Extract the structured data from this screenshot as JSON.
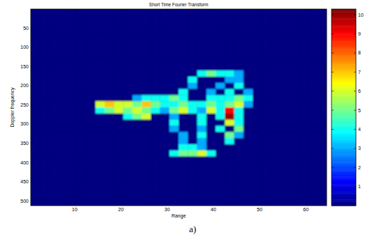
{
  "chart_data": {
    "type": "heatmap",
    "title": "Short Time Fourier Transform",
    "x_label": "Range",
    "y_label": "Doppler frequency",
    "caption": "a)",
    "x": [
      1.5,
      3.5,
      5.5,
      7.5,
      9.5,
      11.5,
      13.5,
      15.5,
      17.5,
      19.5,
      21.5,
      23.5,
      25.5,
      27.5,
      29.5,
      31.5,
      33.5,
      35.5,
      37.5,
      39.5,
      41.5,
      43.5,
      45.5,
      47.5,
      49.5,
      51.5,
      53.5,
      55.5,
      57.5,
      59.5,
      61.5,
      63.5
    ],
    "y": [
      8.5,
      24.5,
      40.5,
      56.5,
      72.5,
      88.5,
      104.5,
      120.5,
      136.5,
      152.5,
      168.5,
      184.5,
      200.5,
      216.5,
      232.5,
      248.5,
      264.5,
      280.5,
      296.5,
      312.5,
      328.5,
      344.5,
      360.5,
      376.5,
      392.5,
      408.5,
      424.5,
      440.5,
      456.5,
      472.5,
      488.5,
      504.5
    ],
    "values": [
      [
        0,
        0,
        0,
        0,
        0,
        0,
        0,
        0,
        0,
        0,
        0,
        0,
        0,
        0,
        0,
        0,
        0,
        0,
        0,
        0,
        0,
        0,
        0,
        0,
        0,
        0,
        0,
        0,
        0,
        0,
        0,
        0
      ],
      [
        0,
        0,
        0,
        0,
        0,
        0,
        0,
        0,
        0,
        0,
        0,
        0,
        0,
        0,
        0,
        0,
        0,
        0,
        0,
        0,
        0,
        0,
        0,
        0,
        0,
        0,
        0,
        0,
        0,
        0,
        0,
        0
      ],
      [
        0,
        0,
        0,
        0,
        0,
        0,
        0,
        0,
        0,
        0,
        0,
        0,
        0,
        0,
        0,
        0,
        0,
        0,
        0,
        0,
        0,
        0,
        0,
        0,
        0,
        0,
        0,
        0,
        0,
        0,
        0,
        0
      ],
      [
        0,
        0,
        0,
        0,
        0,
        0,
        0,
        0,
        0,
        0,
        0,
        0,
        0,
        0,
        0,
        0,
        0,
        0,
        0,
        0,
        0,
        0,
        0,
        0,
        0,
        0,
        0,
        0,
        0,
        0,
        0,
        0
      ],
      [
        0,
        0,
        0,
        0,
        0,
        0,
        0,
        0,
        0,
        0,
        0,
        0,
        0,
        0,
        0,
        0,
        0,
        0,
        0,
        0,
        0,
        0,
        0,
        0,
        0,
        0,
        0,
        0,
        0,
        0,
        0,
        0
      ],
      [
        0,
        0,
        0,
        0,
        0,
        0,
        0,
        0,
        0,
        0,
        0,
        0,
        0,
        0,
        0,
        0,
        0,
        0,
        0,
        0,
        0,
        0,
        0,
        0,
        0,
        0,
        0,
        0,
        0,
        0,
        0,
        0
      ],
      [
        0,
        0,
        0,
        0,
        0,
        0,
        0,
        0,
        0,
        0,
        0,
        0,
        0,
        0,
        0,
        0,
        0,
        0,
        0,
        0,
        0,
        0,
        0,
        0,
        0,
        0,
        0,
        0,
        0,
        0,
        0,
        0
      ],
      [
        0,
        0,
        0,
        0,
        0,
        0,
        0,
        0,
        0,
        0,
        0,
        0,
        0,
        0,
        0,
        0,
        0,
        0,
        0,
        0,
        0,
        0,
        0,
        0,
        0,
        0,
        0,
        0,
        0,
        0,
        0,
        0
      ],
      [
        0,
        0,
        0,
        0,
        0,
        0,
        0,
        0,
        0,
        0,
        0,
        0,
        0,
        0,
        0,
        0,
        0,
        0,
        0,
        0,
        0,
        0,
        0,
        0,
        0,
        0,
        0,
        0,
        0,
        0,
        0,
        0
      ],
      [
        0,
        0,
        0,
        0,
        0,
        0,
        0,
        0,
        0,
        0,
        0,
        0,
        0,
        0,
        0,
        0,
        0,
        0,
        0,
        0,
        0,
        0,
        0,
        0,
        0,
        0,
        0,
        0,
        0,
        0,
        0,
        0
      ],
      [
        0,
        0,
        0,
        0,
        0,
        0,
        0,
        0,
        0,
        0,
        0,
        0,
        0,
        0,
        0,
        0,
        0,
        0,
        4,
        5,
        4,
        4,
        3,
        0,
        0,
        0,
        0,
        0,
        0,
        0,
        0,
        0
      ],
      [
        0,
        0,
        0,
        0,
        0,
        0,
        0,
        0,
        0,
        0,
        0,
        0,
        0,
        0,
        0,
        0,
        0,
        4,
        0,
        0,
        0,
        3,
        3,
        0,
        0,
        0,
        0,
        0,
        0,
        0,
        0,
        0
      ],
      [
        0,
        0,
        0,
        0,
        0,
        0,
        0,
        0,
        0,
        0,
        0,
        0,
        0,
        0,
        0,
        0,
        0,
        3,
        0,
        0,
        3,
        0,
        4,
        0,
        0,
        0,
        0,
        0,
        0,
        0,
        0,
        0
      ],
      [
        0,
        0,
        0,
        0,
        0,
        0,
        0,
        0,
        0,
        0,
        0,
        0,
        0,
        0,
        0,
        0,
        4,
        0,
        0,
        3,
        0,
        4,
        0,
        3,
        0,
        0,
        0,
        0,
        0,
        0,
        0,
        0
      ],
      [
        0,
        0,
        0,
        0,
        0,
        0,
        0,
        0,
        0,
        0,
        0,
        3,
        4,
        4,
        4,
        5,
        4,
        0,
        0,
        4,
        4,
        4,
        5,
        4,
        0,
        0,
        0,
        0,
        0,
        0,
        0,
        0
      ],
      [
        0,
        0,
        0,
        0,
        0,
        0,
        0,
        6,
        7,
        6,
        6,
        5,
        7,
        5,
        4,
        4,
        5,
        4,
        4,
        5,
        4,
        5,
        6,
        3,
        0,
        0,
        0,
        0,
        0,
        0,
        0,
        0
      ],
      [
        0,
        0,
        0,
        0,
        0,
        0,
        0,
        4,
        5,
        6,
        5,
        6,
        5,
        4,
        3,
        5,
        6,
        4,
        3,
        6,
        4,
        9,
        4,
        0,
        0,
        0,
        0,
        0,
        0,
        0,
        0,
        0
      ],
      [
        0,
        0,
        0,
        0,
        0,
        0,
        0,
        0,
        0,
        0,
        4,
        5,
        6,
        0,
        0,
        3,
        0,
        0,
        4,
        0,
        4,
        10,
        4,
        0,
        0,
        0,
        0,
        0,
        0,
        0,
        0,
        0
      ],
      [
        0,
        0,
        0,
        0,
        0,
        0,
        0,
        0,
        0,
        0,
        0,
        0,
        0,
        0,
        0,
        4,
        0,
        0,
        4,
        0,
        0,
        6,
        4,
        0,
        0,
        0,
        0,
        0,
        0,
        0,
        0,
        0
      ],
      [
        0,
        0,
        0,
        0,
        0,
        0,
        0,
        0,
        0,
        0,
        0,
        0,
        0,
        0,
        0,
        3,
        0,
        0,
        3,
        0,
        4,
        0,
        5,
        0,
        0,
        0,
        0,
        0,
        0,
        0,
        0,
        0
      ],
      [
        0,
        0,
        0,
        0,
        0,
        0,
        0,
        0,
        0,
        0,
        0,
        0,
        0,
        0,
        0,
        0,
        3,
        0,
        4,
        0,
        0,
        5,
        3,
        0,
        0,
        0,
        0,
        0,
        0,
        0,
        0,
        0
      ],
      [
        0,
        0,
        0,
        0,
        0,
        0,
        0,
        0,
        0,
        0,
        0,
        0,
        0,
        0,
        0,
        0,
        3,
        0,
        3,
        0,
        0,
        4,
        0,
        0,
        0,
        0,
        0,
        0,
        0,
        0,
        0,
        0
      ],
      [
        0,
        0,
        0,
        0,
        0,
        0,
        0,
        0,
        0,
        0,
        0,
        0,
        0,
        0,
        0,
        0,
        4,
        4,
        3,
        0,
        0,
        0,
        0,
        0,
        0,
        0,
        0,
        0,
        0,
        0,
        0,
        0
      ],
      [
        0,
        0,
        0,
        0,
        0,
        0,
        0,
        0,
        0,
        0,
        0,
        0,
        0,
        0,
        0,
        4,
        5,
        5,
        6,
        4,
        0,
        0,
        0,
        0,
        0,
        0,
        0,
        0,
        0,
        0,
        0,
        0
      ],
      [
        0,
        0,
        0,
        0,
        0,
        0,
        0,
        0,
        0,
        0,
        0,
        0,
        0,
        0,
        0,
        0,
        0,
        0,
        0,
        0,
        0,
        0,
        0,
        0,
        0,
        0,
        0,
        0,
        0,
        0,
        0,
        0
      ],
      [
        0,
        0,
        0,
        0,
        0,
        0,
        0,
        0,
        0,
        0,
        0,
        0,
        0,
        0,
        0,
        0,
        0,
        0,
        0,
        0,
        0,
        0,
        0,
        0,
        0,
        0,
        0,
        0,
        0,
        0,
        0,
        0
      ],
      [
        0,
        0,
        0,
        0,
        0,
        0,
        0,
        0,
        0,
        0,
        0,
        0,
        0,
        0,
        0,
        0,
        0,
        0,
        0,
        0,
        0,
        0,
        0,
        0,
        0,
        0,
        0,
        0,
        0,
        0,
        0,
        0
      ],
      [
        0,
        0,
        0,
        0,
        0,
        0,
        0,
        0,
        0,
        0,
        0,
        0,
        0,
        0,
        0,
        0,
        0,
        0,
        0,
        0,
        0,
        0,
        0,
        0,
        0,
        0,
        0,
        0,
        0,
        0,
        0,
        0
      ],
      [
        0,
        0,
        0,
        0,
        0,
        0,
        0,
        0,
        0,
        0,
        0,
        0,
        0,
        0,
        0,
        0,
        0,
        0,
        0,
        0,
        0,
        0,
        0,
        0,
        0,
        0,
        0,
        0,
        0,
        0,
        0,
        0
      ],
      [
        0,
        0,
        0,
        0,
        0,
        0,
        0,
        0,
        0,
        0,
        0,
        0,
        0,
        0,
        0,
        0,
        0,
        0,
        0,
        0,
        0,
        0,
        0,
        0,
        0,
        0,
        0,
        0,
        0,
        0,
        0,
        0
      ],
      [
        0,
        0,
        0,
        0,
        0,
        0,
        0,
        0,
        0,
        0,
        0,
        0,
        0,
        0,
        0,
        0,
        0,
        0,
        0,
        0,
        0,
        0,
        0,
        0,
        0,
        0,
        0,
        0,
        0,
        0,
        0,
        0
      ],
      [
        0,
        0,
        0,
        0,
        0,
        0,
        0,
        0,
        0,
        0,
        0,
        0,
        0,
        0,
        0,
        0,
        0,
        0,
        0,
        0,
        0,
        0,
        0,
        0,
        0,
        0,
        0,
        0,
        0,
        0,
        0,
        0
      ]
    ],
    "xlim": [
      0.5,
      64.5
    ],
    "ylim": [
      512.5,
      0.5
    ],
    "xticks": [
      10,
      20,
      30,
      40,
      50,
      60
    ],
    "yticks": [
      50,
      100,
      150,
      200,
      250,
      300,
      350,
      400,
      450,
      500
    ],
    "colorbar_range": [
      0,
      10.3
    ],
    "colorbar_ticks": [
      1,
      2,
      3,
      4,
      5,
      6,
      7,
      8,
      9,
      10
    ]
  }
}
